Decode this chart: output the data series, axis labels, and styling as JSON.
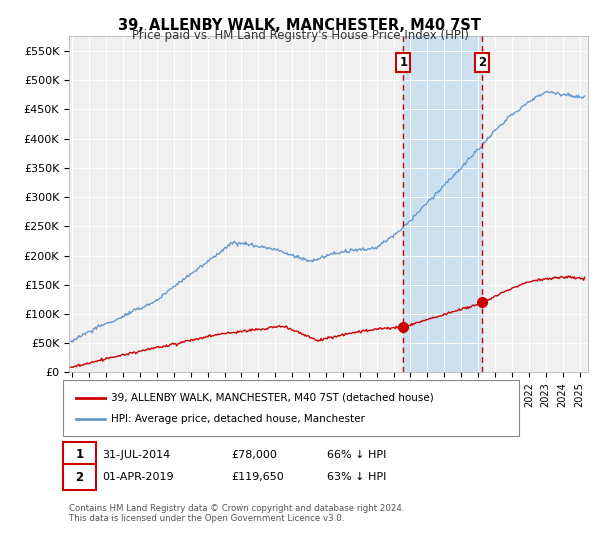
{
  "title": "39, ALLENBY WALK, MANCHESTER, M40 7ST",
  "subtitle": "Price paid vs. HM Land Registry's House Price Index (HPI)",
  "ylabel_ticks": [
    "£0",
    "£50K",
    "£100K",
    "£150K",
    "£200K",
    "£250K",
    "£300K",
    "£350K",
    "£400K",
    "£450K",
    "£500K",
    "£550K"
  ],
  "ytick_values": [
    0,
    50000,
    100000,
    150000,
    200000,
    250000,
    300000,
    350000,
    400000,
    450000,
    500000,
    550000
  ],
  "ylim": [
    0,
    575000
  ],
  "xlim_start": 1994.8,
  "xlim_end": 2025.5,
  "legend_line1": "39, ALLENBY WALK, MANCHESTER, M40 7ST (detached house)",
  "legend_line2": "HPI: Average price, detached house, Manchester",
  "transaction1_date": "31-JUL-2014",
  "transaction1_price": "£78,000",
  "transaction1_hpi": "66% ↓ HPI",
  "transaction1_x": 2014.58,
  "transaction1_y": 78000,
  "transaction2_date": "01-APR-2019",
  "transaction2_price": "£119,650",
  "transaction2_hpi": "63% ↓ HPI",
  "transaction2_x": 2019.25,
  "transaction2_y": 119650,
  "vline1_x": 2014.58,
  "vline2_x": 2019.25,
  "shaded_region_color": "#cce0f0",
  "vline_color": "#cc0000",
  "red_line_color": "#cc0000",
  "blue_line_color": "#6699cc",
  "footer_text": "Contains HM Land Registry data © Crown copyright and database right 2024.\nThis data is licensed under the Open Government Licence v3.0.",
  "background_color": "#ffffff",
  "plot_bg_color": "#f0f0f0"
}
